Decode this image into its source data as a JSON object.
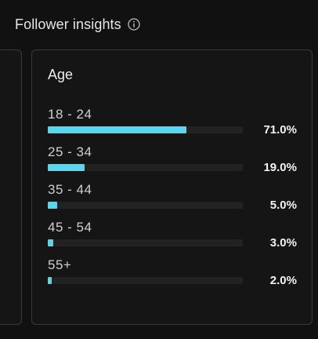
{
  "header": {
    "title": "Follower insights",
    "info_icon": "info-circle-icon"
  },
  "age_card": {
    "title": "Age",
    "accent_color": "#56d6f0",
    "rows": [
      {
        "label": "18 - 24",
        "value_label": "71.0%",
        "fraction": 0.71
      },
      {
        "label": "25 - 34",
        "value_label": "19.0%",
        "fraction": 0.19
      },
      {
        "label": "35 - 44",
        "value_label": "5.0%",
        "fraction": 0.05
      },
      {
        "label": "45 - 54",
        "value_label": "3.0%",
        "fraction": 0.03
      },
      {
        "label": "55+",
        "value_label": "2.0%",
        "fraction": 0.02
      }
    ]
  }
}
